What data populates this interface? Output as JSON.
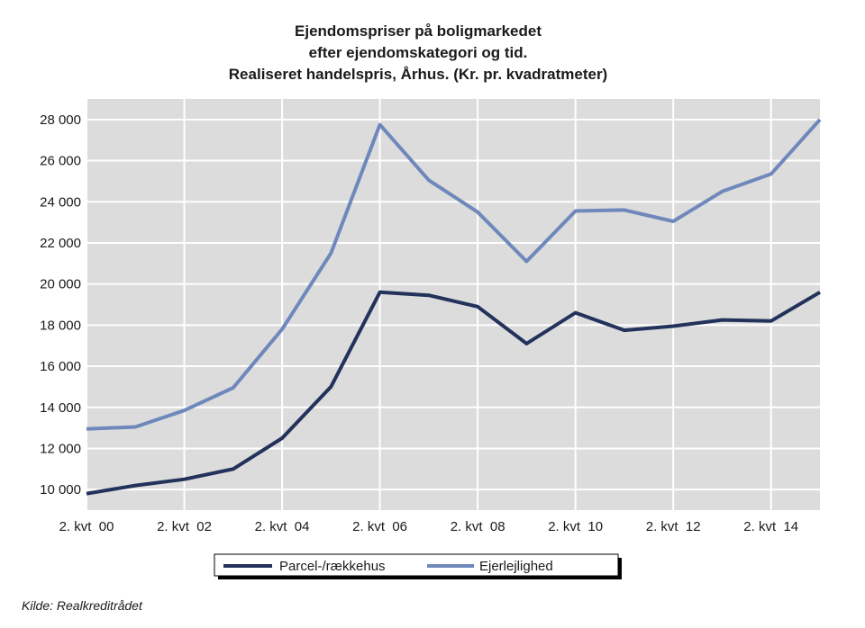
{
  "chart_data": {
    "type": "line",
    "title_lines": [
      "Ejendomspriser på boligmarkedet",
      "efter ejendomskategori og tid.",
      "Realiseret handelspris, Århus. (Kr. pr. kvadratmeter)"
    ],
    "x_tick_labels": [
      "2. kvt  00",
      "2. kvt  02",
      "2. kvt  04",
      "2. kvt  06",
      "2. kvt  08",
      "2. kvt  10",
      "2. kvt  12",
      "2. kvt  14"
    ],
    "y_tick_labels": [
      "10 000",
      "12 000",
      "14 000",
      "16 000",
      "18 000",
      "20 000",
      "22 000",
      "24 000",
      "26 000",
      "28 000"
    ],
    "y_ticks": [
      10000,
      12000,
      14000,
      16000,
      18000,
      20000,
      22000,
      24000,
      26000,
      28000
    ],
    "ylim": [
      9000,
      29000
    ],
    "xlim": [
      0,
      15
    ],
    "x_tick_positions": [
      0,
      2,
      4,
      6,
      8,
      10,
      12,
      14
    ],
    "grid": true,
    "legend_position": "bottom",
    "x": [
      0,
      1,
      2,
      3,
      4,
      5,
      6,
      7,
      8,
      9,
      10,
      11,
      12,
      13,
      14,
      15
    ],
    "series": [
      {
        "name": "Parcel-/rækkehus",
        "color": "#23325a",
        "values": [
          9800,
          10200,
          10500,
          11000,
          12500,
          15000,
          19600,
          19450,
          18900,
          17100,
          18600,
          17750,
          17950,
          18250,
          18200,
          19600
        ]
      },
      {
        "name": "Ejerlejlighed",
        "color": "#6f88bb",
        "values": [
          12950,
          13050,
          13850,
          14950,
          17800,
          21500,
          27750,
          25050,
          23500,
          21100,
          23550,
          23600,
          23050,
          24500,
          25350,
          28000
        ]
      }
    ],
    "source": "Kilde: Realkreditrådet"
  },
  "colors": {
    "plot_background": "#dcdcdc",
    "grid": "#ffffff"
  }
}
